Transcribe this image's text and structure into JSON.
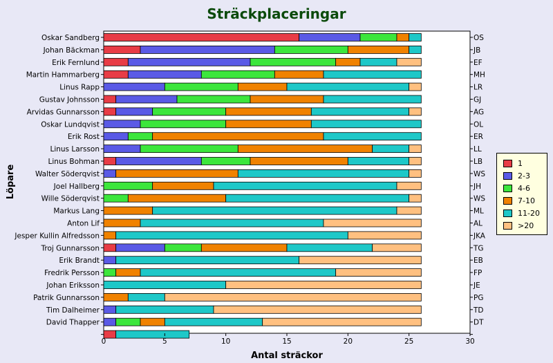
{
  "chart_data": {
    "type": "bar",
    "orientation": "horizontal",
    "stacked": true,
    "title": "Sträckplaceringar",
    "xlabel": "Antal sträckor",
    "ylabel": "Löpare",
    "xlim": [
      0,
      30
    ],
    "xticks": [
      0,
      5,
      10,
      15,
      20,
      25,
      30
    ],
    "grid": false,
    "legend_position": "right",
    "categories": [
      "Oskar Sandberg",
      "Johan Bäckman",
      "Erik Fernlund",
      "Martin Hammarberg",
      "Linus Rapp",
      "Gustav Johnsson",
      "Arvidas Gunnarsson",
      "Oskar Lundqvist",
      "Erik Rost",
      "Linus Larsson",
      "Linus Bohman",
      "Walter Söderqvist",
      "Joel Hallberg",
      "Wille Söderqvist",
      "Markus Lang",
      "Anton Lif",
      "Jesper Kullin Alfredsson",
      "Troj Gunnarsson",
      "Erik Brandt",
      "Fredrik Persson",
      "Johan Eriksson",
      "Patrik Gunnarsson",
      "Tim Dalheimer",
      "David Thapper",
      ""
    ],
    "right_labels": [
      "OS",
      "JB",
      "EF",
      "MH",
      "LR",
      "GJ",
      "AG",
      "OL",
      "ER",
      "LL",
      "LB",
      "WS",
      "JH",
      "WS",
      "ML",
      "AL",
      "JKA",
      "TG",
      "EB",
      "FP",
      "JE",
      "PG",
      "TD",
      "DT",
      ""
    ],
    "series": [
      {
        "name": "1",
        "color": "#e83c46",
        "values": [
          16,
          3,
          2,
          2,
          0,
          1,
          1,
          0,
          0,
          0,
          1,
          0,
          0,
          0,
          0,
          0,
          0,
          1,
          0,
          0,
          0,
          0,
          0,
          0,
          1
        ]
      },
      {
        "name": "2-3",
        "color": "#5a5ae6",
        "values": [
          5,
          11,
          10,
          6,
          5,
          5,
          3,
          3,
          2,
          3,
          7,
          1,
          0,
          0,
          0,
          0,
          0,
          4,
          1,
          0,
          0,
          0,
          1,
          1,
          0
        ]
      },
      {
        "name": "4-6",
        "color": "#3ce63c",
        "values": [
          3,
          6,
          7,
          6,
          6,
          6,
          6,
          7,
          2,
          8,
          4,
          0,
          4,
          2,
          0,
          0,
          0,
          3,
          0,
          1,
          0,
          0,
          0,
          2,
          0
        ]
      },
      {
        "name": "7-10",
        "color": "#f08200",
        "values": [
          1,
          5,
          2,
          4,
          4,
          6,
          7,
          7,
          14,
          11,
          8,
          10,
          5,
          8,
          4,
          3,
          1,
          7,
          0,
          2,
          0,
          2,
          0,
          2,
          0
        ]
      },
      {
        "name": "11-20",
        "color": "#1ec8c8",
        "values": [
          1,
          1,
          3,
          8,
          10,
          8,
          8,
          9,
          8,
          3,
          5,
          14,
          15,
          15,
          20,
          15,
          19,
          7,
          15,
          16,
          10,
          3,
          8,
          8,
          6
        ]
      },
      {
        "name": ">20",
        "color": "#ffc080",
        "values": [
          0,
          0,
          2,
          0,
          1,
          0,
          1,
          0,
          0,
          1,
          1,
          1,
          2,
          1,
          2,
          8,
          6,
          4,
          10,
          7,
          16,
          21,
          17,
          13,
          0
        ]
      }
    ]
  }
}
